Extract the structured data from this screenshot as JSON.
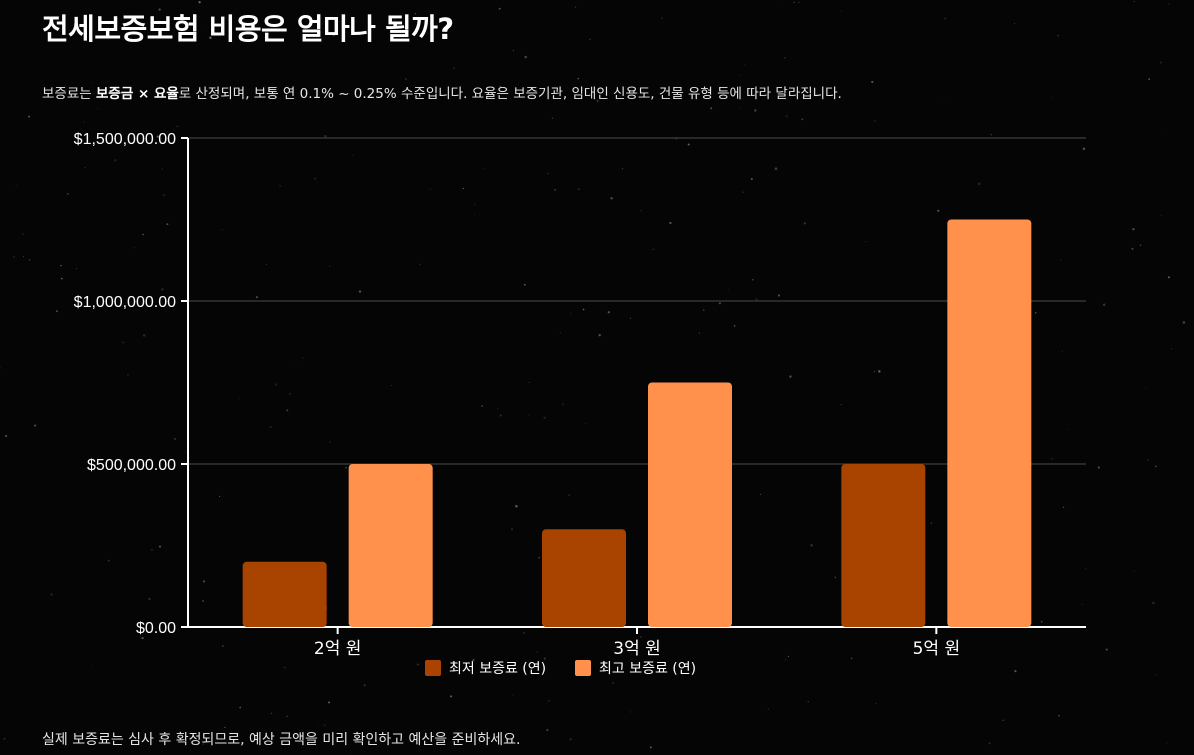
{
  "header": {
    "title": "전세보증보험 비용은 얼마나 될까?",
    "subtitle_prefix": "보증료는 ",
    "subtitle_bold": "보증금 × 요율",
    "subtitle_suffix": "로 산정되며, 보통 연 0.1% ~ 0.25% 수준입니다. 요율은 보증기관, 임대인 신용도, 건물 유형 등에 따라 달라집니다."
  },
  "footer": {
    "note": "실제 보증료는 심사 후 확정되므로, 예상 금액을 미리 확인하고 예산을 준비하세요."
  },
  "chart_data": {
    "type": "bar",
    "categories": [
      "2억 원",
      "3억 원",
      "5억 원"
    ],
    "series": [
      {
        "name": "최저 보증료 (연)",
        "values": [
          200000,
          300000,
          500000
        ],
        "color": "#A84300"
      },
      {
        "name": "최고 보증료 (연)",
        "values": [
          500000,
          750000,
          1250000
        ],
        "color": "#FF914D"
      }
    ],
    "ylim": [
      0,
      1500000
    ],
    "yticks": [
      0,
      500000,
      1000000,
      1500000
    ],
    "ytick_labels": [
      "$0.00",
      "$500,000.00",
      "$1,000,000.00",
      "$1,500,000.00"
    ],
    "grid": true,
    "legend": "bottom"
  }
}
